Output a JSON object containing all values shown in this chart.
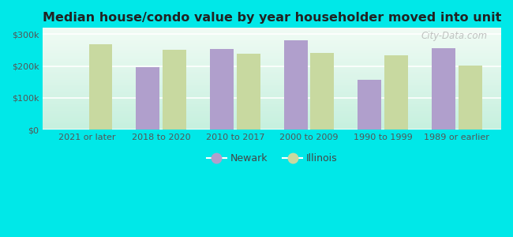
{
  "title": "Median house/condo value by year householder moved into unit",
  "categories": [
    "2021 or later",
    "2018 to 2020",
    "2010 to 2017",
    "2000 to 2009",
    "1990 to 1999",
    "1989 or earlier"
  ],
  "newark": [
    null,
    197000,
    253000,
    282000,
    158000,
    257000
  ],
  "illinois": [
    268000,
    252000,
    240000,
    242000,
    233000,
    202000
  ],
  "newark_color": "#b09fcc",
  "illinois_color": "#c8d9a0",
  "background_color": "#00e8e8",
  "plot_bg_top": "#f0faf0",
  "plot_bg_bottom": "#c8f0e8",
  "ylim": [
    0,
    320000
  ],
  "yticks": [
    0,
    100000,
    200000,
    300000
  ],
  "ytick_labels": [
    "$0",
    "$100k",
    "$200k",
    "$300k"
  ],
  "bar_width": 0.32,
  "legend_newark": "Newark",
  "legend_illinois": "Illinois",
  "watermark": "City-Data.com"
}
